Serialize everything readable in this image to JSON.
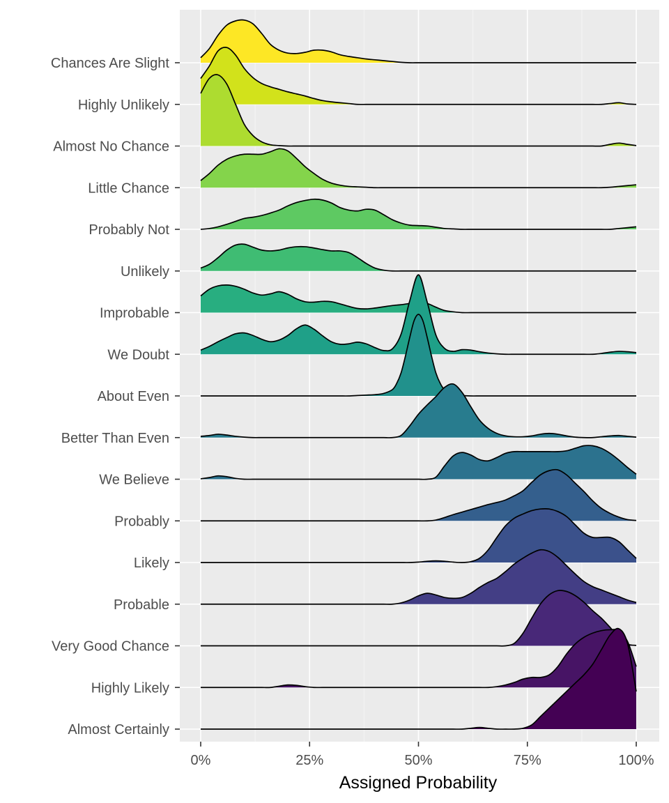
{
  "chart_data": {
    "type": "ridgeline",
    "title": "",
    "xlabel": "Assigned Probability",
    "ylabel": "",
    "xlim": [
      0,
      100
    ],
    "x_ticks": [
      0,
      25,
      50,
      75,
      100
    ],
    "x_tick_labels": [
      "0%",
      "25%",
      "50%",
      "75%",
      "100%"
    ],
    "grid": true,
    "legend": "none",
    "x": [
      0,
      2,
      4,
      6,
      8,
      10,
      12,
      14,
      16,
      18,
      20,
      22,
      24,
      26,
      28,
      30,
      32,
      34,
      36,
      38,
      40,
      42,
      44,
      46,
      48,
      50,
      52,
      54,
      56,
      58,
      60,
      62,
      64,
      66,
      68,
      70,
      72,
      74,
      76,
      78,
      80,
      82,
      84,
      86,
      88,
      90,
      92,
      94,
      96,
      98,
      100
    ],
    "series": [
      {
        "name": "Chances Are Slight",
        "color": "#fde725",
        "values": [
          0.12,
          0.34,
          0.66,
          0.9,
          1.0,
          1.02,
          0.93,
          0.7,
          0.44,
          0.3,
          0.23,
          0.22,
          0.25,
          0.3,
          0.3,
          0.26,
          0.19,
          0.15,
          0.12,
          0.09,
          0.07,
          0.05,
          0.03,
          0.01,
          0,
          0,
          0,
          0,
          0,
          0,
          0,
          0,
          0,
          0,
          0,
          0,
          0,
          0,
          0,
          0,
          0,
          0,
          0,
          0,
          0,
          0,
          0,
          0,
          0,
          0,
          0
        ]
      },
      {
        "name": "Highly Unlikely",
        "color": "#d2e21b",
        "values": [
          0.62,
          0.92,
          1.28,
          1.36,
          1.18,
          0.86,
          0.64,
          0.5,
          0.42,
          0.36,
          0.3,
          0.25,
          0.2,
          0.14,
          0.09,
          0.06,
          0.04,
          0.02,
          0,
          0,
          0,
          0,
          0,
          0,
          0,
          0,
          0,
          0,
          0,
          0,
          0,
          0,
          0,
          0,
          0,
          0,
          0,
          0,
          0,
          0,
          0,
          0,
          0,
          0,
          0,
          0,
          0,
          0.02,
          0.04,
          0.01,
          0
        ]
      },
      {
        "name": "Almost No Chance",
        "color": "#addc30",
        "values": [
          1.26,
          1.62,
          1.7,
          1.48,
          1.0,
          0.52,
          0.25,
          0.1,
          0.03,
          0.01,
          0,
          0,
          0,
          0,
          0,
          0,
          0,
          0,
          0,
          0,
          0,
          0,
          0,
          0,
          0,
          0,
          0,
          0,
          0,
          0,
          0,
          0,
          0,
          0,
          0,
          0,
          0,
          0,
          0,
          0,
          0,
          0,
          0,
          0,
          0,
          0,
          0,
          0.04,
          0.07,
          0.04,
          0.01
        ]
      },
      {
        "name": "Little Chance",
        "color": "#84d44b",
        "values": [
          0.17,
          0.34,
          0.54,
          0.68,
          0.76,
          0.8,
          0.8,
          0.8,
          0.86,
          0.93,
          0.88,
          0.7,
          0.5,
          0.34,
          0.2,
          0.11,
          0.06,
          0.03,
          0.02,
          0.01,
          0,
          0,
          0,
          0,
          0,
          0,
          0,
          0,
          0,
          0,
          0,
          0,
          0,
          0,
          0,
          0,
          0,
          0,
          0,
          0,
          0,
          0,
          0,
          0,
          0,
          0,
          0,
          0.01,
          0.03,
          0.05,
          0.07
        ]
      },
      {
        "name": "Probably Not",
        "color": "#5ec962",
        "values": [
          0,
          0.02,
          0.06,
          0.12,
          0.19,
          0.26,
          0.29,
          0.33,
          0.39,
          0.46,
          0.56,
          0.64,
          0.69,
          0.72,
          0.7,
          0.63,
          0.52,
          0.46,
          0.44,
          0.48,
          0.46,
          0.35,
          0.23,
          0.15,
          0.1,
          0.09,
          0.08,
          0.05,
          0.02,
          0.01,
          0,
          0,
          0,
          0,
          0,
          0,
          0,
          0,
          0,
          0,
          0,
          0,
          0,
          0,
          0,
          0,
          0,
          0,
          0.02,
          0.04,
          0.06
        ]
      },
      {
        "name": "Unlikely",
        "color": "#3fbc73",
        "values": [
          0.07,
          0.16,
          0.32,
          0.5,
          0.62,
          0.64,
          0.57,
          0.5,
          0.48,
          0.5,
          0.55,
          0.58,
          0.58,
          0.55,
          0.51,
          0.48,
          0.48,
          0.44,
          0.32,
          0.18,
          0.07,
          0.02,
          0,
          0,
          0,
          0,
          0,
          0,
          0,
          0,
          0,
          0,
          0,
          0,
          0,
          0,
          0,
          0,
          0,
          0,
          0,
          0,
          0,
          0,
          0,
          0,
          0,
          0,
          0,
          0,
          0
        ]
      },
      {
        "name": "Improbable",
        "color": "#28ae80",
        "values": [
          0.4,
          0.56,
          0.64,
          0.66,
          0.63,
          0.56,
          0.47,
          0.42,
          0.45,
          0.5,
          0.44,
          0.33,
          0.26,
          0.25,
          0.27,
          0.26,
          0.21,
          0.15,
          0.1,
          0.09,
          0.11,
          0.14,
          0.17,
          0.19,
          0.22,
          0.25,
          0.22,
          0.13,
          0.05,
          0.02,
          0,
          0,
          0,
          0,
          0,
          0,
          0,
          0,
          0,
          0,
          0,
          0,
          0,
          0,
          0,
          0,
          0,
          0,
          0,
          0,
          0
        ]
      },
      {
        "name": "We Doubt",
        "color": "#1fa088",
        "values": [
          0.1,
          0.19,
          0.3,
          0.4,
          0.49,
          0.51,
          0.45,
          0.36,
          0.3,
          0.34,
          0.45,
          0.61,
          0.7,
          0.6,
          0.44,
          0.3,
          0.24,
          0.25,
          0.29,
          0.25,
          0.16,
          0.09,
          0.13,
          0.48,
          1.28,
          1.9,
          1.25,
          0.46,
          0.14,
          0.07,
          0.11,
          0.1,
          0.06,
          0.03,
          0.01,
          0,
          0,
          0,
          0,
          0,
          0,
          0,
          0,
          0,
          0,
          0,
          0.02,
          0.05,
          0.07,
          0.06,
          0.04
        ]
      },
      {
        "name": "About Even",
        "color": "#21918c",
        "values": [
          0,
          0,
          0,
          0,
          0,
          0,
          0,
          0,
          0,
          0,
          0,
          0,
          0,
          0,
          0,
          0,
          0,
          0,
          0,
          0,
          0,
          0,
          0,
          0,
          0,
          0,
          0,
          0,
          0,
          0,
          0,
          0,
          0,
          0,
          0,
          0,
          0,
          0,
          0,
          0,
          0,
          0,
          0,
          0,
          0,
          0,
          0,
          0,
          0,
          0,
          0
        ]
      },
      {
        "name": "Better Than Even",
        "color": "#287c8e",
        "values": [
          0.03,
          0.05,
          0.08,
          0.06,
          0.03,
          0.01,
          0,
          0,
          0,
          0,
          0,
          0,
          0,
          0,
          0,
          0,
          0,
          0,
          0,
          0,
          0,
          0,
          0,
          0.05,
          0.28,
          0.56,
          0.78,
          0.98,
          1.2,
          1.28,
          1.08,
          0.74,
          0.42,
          0.22,
          0.1,
          0.04,
          0.02,
          0.02,
          0.04,
          0.08,
          0.1,
          0.08,
          0.04,
          0.01,
          0,
          0,
          0.02,
          0.04,
          0.05,
          0.03,
          0.01
        ]
      },
      {
        "name": "We Believe",
        "color": "#2c728e",
        "values": [
          0.01,
          0.04,
          0.08,
          0.06,
          0.02,
          0,
          0,
          0,
          0,
          0,
          0,
          0,
          0,
          0,
          0,
          0,
          0,
          0,
          0,
          0,
          0,
          0,
          0,
          0,
          0,
          0,
          0,
          0.05,
          0.32,
          0.56,
          0.64,
          0.58,
          0.47,
          0.44,
          0.52,
          0.62,
          0.66,
          0.66,
          0.66,
          0.66,
          0.66,
          0.66,
          0.68,
          0.74,
          0.8,
          0.8,
          0.74,
          0.62,
          0.46,
          0.28,
          0.12
        ]
      },
      {
        "name": "Probably",
        "color": "#345f8d",
        "values": [
          0,
          0,
          0,
          0,
          0,
          0,
          0,
          0,
          0,
          0,
          0,
          0,
          0,
          0,
          0,
          0,
          0,
          0,
          0,
          0,
          0,
          0,
          0,
          0,
          0,
          0,
          0,
          0.02,
          0.08,
          0.15,
          0.21,
          0.27,
          0.33,
          0.39,
          0.44,
          0.5,
          0.6,
          0.72,
          0.92,
          1.1,
          1.2,
          1.22,
          1.1,
          0.9,
          0.7,
          0.48,
          0.3,
          0.18,
          0.09,
          0.03,
          0.01
        ]
      },
      {
        "name": "Likely",
        "color": "#3b518b",
        "values": [
          0,
          0,
          0,
          0,
          0,
          0,
          0,
          0,
          0,
          0,
          0,
          0,
          0,
          0,
          0,
          0,
          0,
          0,
          0,
          0,
          0,
          0,
          0,
          0,
          0,
          0.01,
          0.03,
          0.04,
          0.03,
          0.01,
          0,
          0.02,
          0.1,
          0.3,
          0.6,
          0.88,
          1.06,
          1.16,
          1.24,
          1.28,
          1.28,
          1.22,
          1.1,
          0.9,
          0.7,
          0.6,
          0.6,
          0.6,
          0.5,
          0.3,
          0.1
        ]
      },
      {
        "name": "Probable",
        "color": "#433e85",
        "values": [
          0,
          0,
          0,
          0,
          0,
          0,
          0,
          0,
          0,
          0,
          0,
          0,
          0,
          0,
          0,
          0,
          0,
          0,
          0,
          0,
          0,
          0,
          0,
          0.03,
          0.1,
          0.2,
          0.26,
          0.22,
          0.16,
          0.14,
          0.16,
          0.26,
          0.4,
          0.52,
          0.62,
          0.78,
          0.96,
          1.1,
          1.22,
          1.3,
          1.26,
          1.12,
          0.92,
          0.72,
          0.54,
          0.42,
          0.34,
          0.26,
          0.18,
          0.1,
          0.04
        ]
      },
      {
        "name": "Very Good Chance",
        "color": "#482878",
        "values": [
          0,
          0,
          0,
          0,
          0,
          0,
          0,
          0,
          0,
          0,
          0,
          0,
          0,
          0,
          0,
          0,
          0,
          0,
          0,
          0,
          0,
          0,
          0,
          0,
          0,
          0,
          0,
          0,
          0,
          0,
          0,
          0,
          0,
          0,
          0,
          0,
          0.06,
          0.3,
          0.66,
          1.0,
          1.22,
          1.32,
          1.3,
          1.2,
          1.04,
          0.84,
          0.66,
          0.44,
          0.2,
          0.04,
          0.01
        ]
      },
      {
        "name": "Highly Likely",
        "color": "#471465",
        "values": [
          0,
          0,
          0,
          0,
          0,
          0,
          0,
          0,
          0,
          0.03,
          0.06,
          0.05,
          0.02,
          0,
          0,
          0,
          0,
          0,
          0,
          0,
          0,
          0,
          0,
          0,
          0,
          0,
          0,
          0,
          0,
          0,
          0,
          0,
          0,
          0,
          0.02,
          0.06,
          0.12,
          0.2,
          0.24,
          0.24,
          0.3,
          0.5,
          0.8,
          1.04,
          1.2,
          1.3,
          1.36,
          1.38,
          1.36,
          1.1,
          0.5
        ]
      },
      {
        "name": "Almost Certainly",
        "color": "#440154",
        "values": [
          0,
          0,
          0,
          0,
          0,
          0,
          0,
          0,
          0,
          0,
          0,
          0,
          0,
          0,
          0,
          0,
          0,
          0,
          0,
          0,
          0,
          0,
          0,
          0,
          0,
          0,
          0,
          0,
          0,
          0,
          0,
          0.02,
          0.04,
          0.02,
          0,
          0,
          0,
          0.02,
          0.1,
          0.3,
          0.5,
          0.7,
          0.9,
          1.1,
          1.3,
          1.55,
          1.9,
          2.25,
          2.4,
          2.05,
          0.9
        ]
      }
    ],
    "about_even_density": {
      "x": [
        34,
        36,
        38,
        40,
        42,
        44,
        45,
        46,
        47,
        48,
        49,
        50,
        51,
        52,
        53,
        54,
        55,
        56,
        58,
        60,
        62
      ],
      "values": [
        0,
        0.01,
        0.02,
        0.03,
        0.06,
        0.15,
        0.3,
        0.55,
        0.95,
        1.4,
        1.8,
        1.95,
        1.8,
        1.4,
        0.95,
        0.55,
        0.3,
        0.15,
        0.04,
        0.01,
        0
      ]
    },
    "density_scale_note": ""
  }
}
